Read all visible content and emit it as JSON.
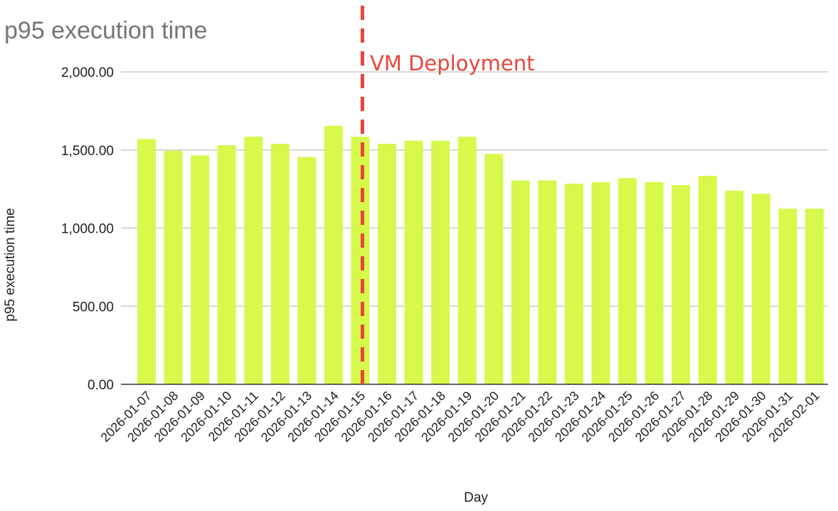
{
  "chart_data": {
    "type": "bar",
    "title": "p95 execution time",
    "xlabel": "Day",
    "ylabel": "p95 execution time",
    "ylim": [
      0,
      2000
    ],
    "yticks": [
      "0.00",
      "500.00",
      "1,000.00",
      "1,500.00",
      "2,000.00"
    ],
    "ytick_values": [
      0,
      500,
      1000,
      1500,
      2000
    ],
    "grid": true,
    "legend": "none",
    "bar_color": "#d6f94c",
    "categories": [
      "2026-01-07",
      "2026-01-08",
      "2026-01-09",
      "2026-01-10",
      "2026-01-11",
      "2026-01-12",
      "2026-01-13",
      "2026-01-14",
      "2026-01-15",
      "2026-01-16",
      "2026-01-17",
      "2026-01-18",
      "2026-01-19",
      "2026-01-20",
      "2026-01-21",
      "2026-01-22",
      "2026-01-23",
      "2026-01-24",
      "2026-01-25",
      "2026-01-26",
      "2026-01-27",
      "2026-01-28",
      "2026-01-29",
      "2026-01-30",
      "2026-01-31",
      "2026-02-01"
    ],
    "values": [
      1570,
      1495,
      1465,
      1530,
      1585,
      1540,
      1455,
      1655,
      1585,
      1540,
      1560,
      1560,
      1585,
      1475,
      1305,
      1305,
      1285,
      1295,
      1320,
      1295,
      1275,
      1335,
      1240,
      1220,
      1125,
      1125
    ],
    "annotation": {
      "label": "VM Deployment",
      "category": "2026-01-15",
      "style": "dashed vertical line",
      "color": "#e8453c"
    }
  }
}
